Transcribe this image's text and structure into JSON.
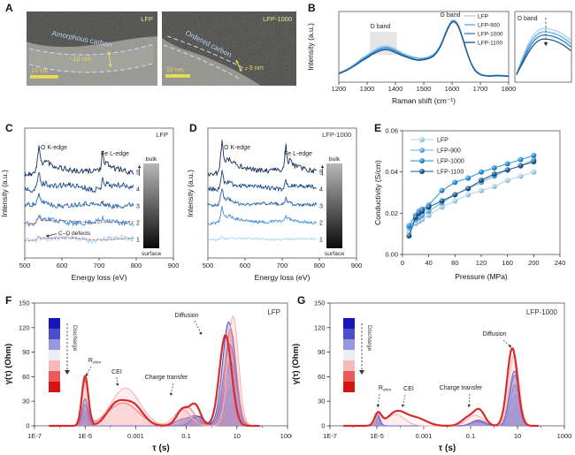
{
  "panels": {
    "A": {
      "label": "A",
      "left": {
        "tag": "LFP",
        "region_label": "Amorphous carbon",
        "thickness": "~10 nm",
        "scalebar": "10 nm"
      },
      "right": {
        "tag": "LFP-1000",
        "region_label": "Ordered carbon",
        "thickness": "~3 nm",
        "scalebar": "10 nm"
      }
    },
    "B": {
      "label": "B"
    },
    "C": {
      "label": "C"
    },
    "D": {
      "label": "D"
    },
    "E": {
      "label": "E"
    },
    "F": {
      "label": "F"
    },
    "G": {
      "label": "G"
    }
  },
  "chart_data": [
    {
      "panel": "B",
      "type": "line",
      "xlabel": "Raman shift (cm⁻¹)",
      "ylabel": "Intensity (a.u.)",
      "xlim": [
        1200,
        1800
      ],
      "xticks": [
        1200,
        1300,
        1400,
        1500,
        1600,
        1700,
        1800
      ],
      "band_annotations": {
        "d": "D band",
        "g": "G band"
      },
      "d_band_box": [
        1310,
        1405
      ],
      "x": [
        1200,
        1220,
        1240,
        1260,
        1280,
        1300,
        1320,
        1340,
        1360,
        1380,
        1400,
        1420,
        1440,
        1460,
        1480,
        1500,
        1520,
        1540,
        1560,
        1580,
        1600,
        1620,
        1640,
        1660,
        1680,
        1700,
        1720,
        1740,
        1760,
        1780,
        1800
      ],
      "series": [
        {
          "name": "LFP",
          "color": "#a2d0ef",
          "values": [
            0.1,
            0.14,
            0.19,
            0.25,
            0.32,
            0.38,
            0.44,
            0.49,
            0.52,
            0.51,
            0.47,
            0.42,
            0.38,
            0.35,
            0.33,
            0.33,
            0.35,
            0.4,
            0.53,
            0.76,
            0.93,
            0.88,
            0.62,
            0.33,
            0.15,
            0.08,
            0.06,
            0.06,
            0.07,
            0.06,
            0.06
          ]
        },
        {
          "name": "LFP-900",
          "color": "#58a9e2",
          "values": [
            0.1,
            0.13,
            0.18,
            0.24,
            0.31,
            0.36,
            0.42,
            0.47,
            0.5,
            0.49,
            0.45,
            0.4,
            0.36,
            0.34,
            0.32,
            0.32,
            0.34,
            0.39,
            0.52,
            0.75,
            0.92,
            0.87,
            0.61,
            0.32,
            0.14,
            0.08,
            0.06,
            0.06,
            0.07,
            0.06,
            0.06
          ]
        },
        {
          "name": "LFP-1000",
          "color": "#2980c8",
          "values": [
            0.09,
            0.13,
            0.17,
            0.23,
            0.29,
            0.35,
            0.4,
            0.45,
            0.48,
            0.47,
            0.43,
            0.39,
            0.35,
            0.32,
            0.3,
            0.31,
            0.33,
            0.38,
            0.51,
            0.74,
            0.91,
            0.86,
            0.6,
            0.31,
            0.14,
            0.07,
            0.06,
            0.05,
            0.06,
            0.06,
            0.05
          ]
        },
        {
          "name": "LFP-1100",
          "color": "#1c5488",
          "values": [
            0.09,
            0.12,
            0.17,
            0.22,
            0.28,
            0.33,
            0.39,
            0.43,
            0.46,
            0.45,
            0.41,
            0.37,
            0.34,
            0.31,
            0.29,
            0.3,
            0.32,
            0.37,
            0.5,
            0.73,
            0.9,
            0.85,
            0.59,
            0.31,
            0.13,
            0.07,
            0.05,
            0.05,
            0.06,
            0.05,
            0.05
          ]
        }
      ],
      "inset": {
        "title": "D band",
        "peak_levels": [
          0.78,
          0.73,
          0.68,
          0.62
        ]
      }
    },
    {
      "panel": "C",
      "type": "eels",
      "tag": "LFP",
      "xlabel": "Energy loss (eV)",
      "ylabel": "Intensity (a.u.)",
      "xticks": [
        500,
        600,
        700,
        800,
        900
      ],
      "edge_labels": [
        "O K-edge",
        "Fe L-edge"
      ],
      "depth_labels": [
        "bulk",
        "surface"
      ],
      "defect_label": "C–O defects",
      "noise_seed": 11,
      "traces": [
        {
          "id": 1,
          "color": "#a6d4f0",
          "o": 4,
          "fe": 1,
          "noise": 3.2,
          "fit": true
        },
        {
          "id": 2,
          "color": "#3f8fd8",
          "o": 6,
          "fe": 2,
          "noise": 3.0,
          "fit": true
        },
        {
          "id": 3,
          "color": "#2a66ab",
          "o": 8,
          "fe": 4,
          "noise": 2.8
        },
        {
          "id": 4,
          "color": "#1c4a86",
          "o": 16,
          "fe": 13,
          "noise": 3.2
        },
        {
          "id": 5,
          "color": "#15305a",
          "o": 22,
          "fe": 15,
          "noise": 3.2
        }
      ]
    },
    {
      "panel": "D",
      "type": "eels",
      "tag": "LFP-1000",
      "xlabel": "Energy loss (eV)",
      "ylabel": "Intensity (a.u.)",
      "xticks": [
        500,
        600,
        700,
        800,
        900
      ],
      "edge_labels": [
        "O K-edge",
        "Fe L-edge"
      ],
      "depth_labels": [
        "bulk",
        "surface"
      ],
      "noise_seed": 23,
      "traces": [
        {
          "id": 1,
          "color": "#a8d6f2",
          "o": 3,
          "fe": 1,
          "noise": 1.2
        },
        {
          "id": 2,
          "color": "#3f8fd8",
          "o": 13,
          "fe": 5,
          "noise": 1.8
        },
        {
          "id": 3,
          "color": "#2a66ab",
          "o": 15,
          "fe": 7,
          "noise": 2.0
        },
        {
          "id": 4,
          "color": "#1c4a86",
          "o": 17,
          "fe": 9,
          "noise": 2.4
        },
        {
          "id": 5,
          "color": "#15305a",
          "o": 26,
          "fe": 22,
          "noise": 2.8
        }
      ]
    },
    {
      "panel": "E",
      "type": "scatter-line",
      "xlabel": "Pressure (MPa)",
      "ylabel": "Conductivity (S/cm)",
      "xlim": [
        0,
        240
      ],
      "ylim": [
        0,
        0.06
      ],
      "xticks": [
        0,
        40,
        80,
        120,
        160,
        200,
        240
      ],
      "yticks": [
        0,
        0.02,
        0.04,
        0.06
      ],
      "ytick_labels": [
        "0.00",
        "0.02",
        "0.04",
        "0.06"
      ],
      "x": [
        10,
        20,
        25,
        30,
        40,
        60,
        80,
        100,
        120,
        140,
        160,
        180,
        200
      ],
      "series": [
        {
          "name": "LFP",
          "color": "#a5d2f0",
          "values": [
            0.011,
            0.015,
            0.016,
            0.017,
            0.019,
            0.023,
            0.026,
            0.029,
            0.031,
            0.033,
            0.036,
            0.038,
            0.04
          ]
        },
        {
          "name": "LFP-900",
          "color": "#5fb0e6",
          "values": [
            0.013,
            0.017,
            0.018,
            0.019,
            0.021,
            0.025,
            0.029,
            0.032,
            0.035,
            0.038,
            0.041,
            0.043,
            0.046
          ]
        },
        {
          "name": "LFP-1000",
          "color": "#1e8fdd",
          "values": [
            0.014,
            0.019,
            0.021,
            0.022,
            0.024,
            0.031,
            0.035,
            0.037,
            0.04,
            0.042,
            0.044,
            0.046,
            0.048
          ]
        },
        {
          "name": "LFP-1100",
          "color": "#15568f",
          "values": [
            0.009,
            0.018,
            0.02,
            0.021,
            0.023,
            0.026,
            0.029,
            0.032,
            0.036,
            0.039,
            0.041,
            0.043,
            0.045
          ]
        }
      ]
    },
    {
      "panel": "F",
      "type": "drt",
      "tag": "LFP",
      "xlabel": "τ (s)",
      "ylabel": "γ(τ) (Ohm)",
      "ylim": [
        0,
        150
      ],
      "yticks": [
        0,
        30,
        60,
        90,
        120,
        150
      ],
      "xtick_labels": [
        "1E-7",
        "1E-5",
        "0.001",
        "0.1",
        "10",
        "1000"
      ],
      "xtick_logs": [
        -7,
        -5,
        -3,
        -1,
        1,
        3
      ],
      "legend_colors": [
        "#1717b8",
        "#4d4dcc",
        "#9898e0",
        "#ececf6",
        "#f6baba",
        "#ea5a5a",
        "#d51414"
      ],
      "legend_label": "Discharge",
      "annotations": [
        {
          "text": "R_ohm",
          "x": 107,
          "y": 80,
          "arrow": [
            103,
            85,
            97,
            96
          ]
        },
        {
          "text": "CEI",
          "x": 132,
          "y": 93,
          "arrow": [
            132,
            97,
            133,
            107
          ]
        },
        {
          "text": "Charge transfer",
          "x": 188,
          "y": 99,
          "arrow": [
            196,
            104,
            193,
            118
          ]
        },
        {
          "text": "Diffusion",
          "x": 211,
          "y": 29,
          "arrow": [
            220,
            33,
            228,
            49
          ]
        }
      ],
      "series": [
        {
          "color": "#c0c0ee",
          "fill": 0.4,
          "width": 1,
          "peaks": [
            [
              -5,
              10,
              0.17
            ],
            [
              -0.9,
              5,
              0.45
            ],
            [
              0.85,
              28,
              0.3
            ]
          ]
        },
        {
          "color": "#a8a8e6",
          "fill": 0.35,
          "width": 1,
          "peaks": [
            [
              -5,
              14,
              0.17
            ],
            [
              -0.85,
              7,
              0.45
            ],
            [
              0.8,
              46,
              0.32
            ]
          ]
        },
        {
          "color": "#8d8ddc",
          "fill": 0.32,
          "width": 1,
          "peaks": [
            [
              -5,
              19,
              0.17
            ],
            [
              -1.3,
              5,
              0.35
            ],
            [
              -0.7,
              10,
              0.4
            ],
            [
              0.76,
              78,
              0.34
            ]
          ]
        },
        {
          "color": "#6f6fd2",
          "fill": 0.3,
          "width": 1.1,
          "peaks": [
            [
              -5,
              26,
              0.17
            ],
            [
              -1.2,
              7,
              0.35
            ],
            [
              -0.62,
              12,
              0.38
            ],
            [
              0.72,
              100,
              0.35
            ]
          ]
        },
        {
          "color": "#5555c8",
          "fill": 0.28,
          "width": 1.1,
          "peaks": [
            [
              -5,
              33,
              0.17
            ],
            [
              -0.55,
              12,
              0.35
            ],
            [
              0.68,
              127,
              0.35
            ]
          ]
        },
        {
          "color": "#f6b6b6",
          "fill": 0.25,
          "width": 1.2,
          "peaks": [
            [
              -5,
              58,
              0.19
            ],
            [
              -3.4,
              46,
              0.8
            ],
            [
              -1.15,
              20,
              0.45
            ],
            [
              0.85,
              134,
              0.3
            ]
          ]
        },
        {
          "color": "#ee8080",
          "fill": 0.2,
          "width": 1.2,
          "peaks": [
            [
              -5,
              54,
              0.19
            ],
            [
              -3.5,
              28,
              0.85
            ],
            [
              -1.0,
              24,
              0.45
            ],
            [
              0.75,
              118,
              0.32
            ]
          ]
        },
        {
          "color": "#d92b2b",
          "fill": 0,
          "width": 2.2,
          "peaks": [
            [
              -5,
              61,
              0.18
            ],
            [
              -3.8,
              24,
              0.5
            ],
            [
              -3.1,
              25,
              0.55
            ],
            [
              -1.15,
              20,
              0.33
            ],
            [
              -0.65,
              25,
              0.3
            ],
            [
              0.55,
              111,
              0.34
            ]
          ]
        }
      ]
    },
    {
      "panel": "G",
      "type": "drt",
      "tag": "LFP-1000",
      "xlabel": "τ (s)",
      "ylabel": "γ(τ) (Ohm)",
      "ylim": [
        0,
        150
      ],
      "yticks": [
        0,
        30,
        60,
        90,
        120,
        150
      ],
      "xtick_labels": [
        "1E-7",
        "1E-5",
        "0.001",
        "0.1",
        "10",
        "1000"
      ],
      "xtick_logs": [
        -7,
        -5,
        -3,
        -1,
        1,
        3
      ],
      "legend_colors": [
        "#1717b8",
        "#4d4dcc",
        "#9898e0",
        "#ececf6",
        "#f6baba",
        "#ea5a5a",
        "#d51414"
      ],
      "legend_label": "Discharge",
      "annotations": [
        {
          "text": "R_ohm",
          "x": 110,
          "y": 111,
          "arrow": [
            104,
            116,
            102,
            131
          ]
        },
        {
          "text": "CEI",
          "x": 137,
          "y": 112,
          "arrow": [
            133,
            117,
            130,
            131
          ]
        },
        {
          "text": "Charge transfer",
          "x": 196,
          "y": 111,
          "arrow": [
            206,
            116,
            205,
            131
          ]
        },
        {
          "text": "Diffusion",
          "x": 234,
          "y": 50,
          "arrow": [
            244,
            55,
            253,
            63
          ]
        }
      ],
      "series": [
        {
          "color": "#c0c0ee",
          "fill": 0.4,
          "width": 1,
          "peaks": [
            [
              -5,
              8,
              0.17
            ],
            [
              0.95,
              24,
              0.26
            ]
          ]
        },
        {
          "color": "#a8a8e6",
          "fill": 0.35,
          "width": 1,
          "peaks": [
            [
              -5,
              10,
              0.17
            ],
            [
              -0.7,
              4,
              0.4
            ],
            [
              0.92,
              38,
              0.28
            ]
          ]
        },
        {
          "color": "#8d8ddc",
          "fill": 0.32,
          "width": 1,
          "peaks": [
            [
              -5,
              12,
              0.17
            ],
            [
              -0.7,
              5,
              0.4
            ],
            [
              0.9,
              50,
              0.29
            ]
          ]
        },
        {
          "color": "#6f6fd2",
          "fill": 0.3,
          "width": 1.1,
          "peaks": [
            [
              -5,
              14,
              0.17
            ],
            [
              -0.7,
              6,
              0.4
            ],
            [
              0.88,
              62,
              0.3
            ]
          ]
        },
        {
          "color": "#5555c8",
          "fill": 0.28,
          "width": 1.1,
          "peaks": [
            [
              -5,
              16,
              0.17
            ],
            [
              -0.68,
              7,
              0.4
            ],
            [
              0.87,
              67,
              0.3
            ]
          ]
        },
        {
          "color": "#f6b6b6",
          "fill": 0.25,
          "width": 1.2,
          "peaks": [
            [
              -4.9,
              13,
              0.2
            ],
            [
              -4.2,
              14,
              0.55
            ],
            [
              -0.8,
              13,
              0.5
            ],
            [
              0.85,
              87,
              0.3
            ]
          ]
        },
        {
          "color": "#d92b2b",
          "fill": 0,
          "width": 2.2,
          "peaks": [
            [
              -4.95,
              15,
              0.2
            ],
            [
              -4.15,
              17,
              0.55
            ],
            [
              -3.3,
              9,
              0.6
            ],
            [
              -1.1,
              10,
              0.4
            ],
            [
              -0.62,
              18,
              0.33
            ],
            [
              0.78,
              95,
              0.31
            ]
          ]
        }
      ]
    }
  ]
}
